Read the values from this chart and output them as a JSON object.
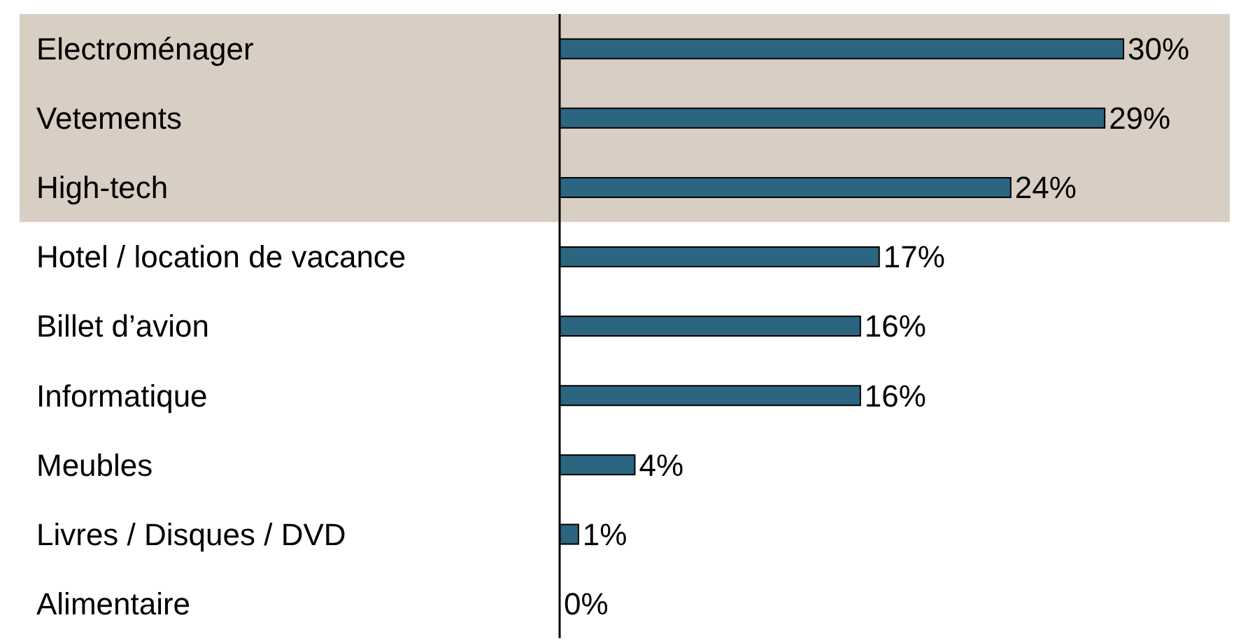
{
  "chart_data": {
    "type": "bar",
    "orientation": "horizontal",
    "categories": [
      "Electroménager",
      "Vetements",
      "High-tech",
      "Hotel / location de vacance",
      "Billet d’avion",
      "Informatique",
      "Meubles",
      "Livres / Disques / DVD",
      "Alimentaire"
    ],
    "values": [
      30,
      29,
      24,
      17,
      16,
      16,
      4,
      1,
      0
    ],
    "value_labels": [
      "30%",
      "29%",
      "24%",
      "17%",
      "16%",
      "16%",
      "4%",
      "1%",
      "0%"
    ],
    "color": "#2b6580",
    "bands": [
      {
        "axis": "y",
        "from": "Electroménager",
        "to": "High-tech",
        "color": "#d9cec4"
      }
    ]
  }
}
